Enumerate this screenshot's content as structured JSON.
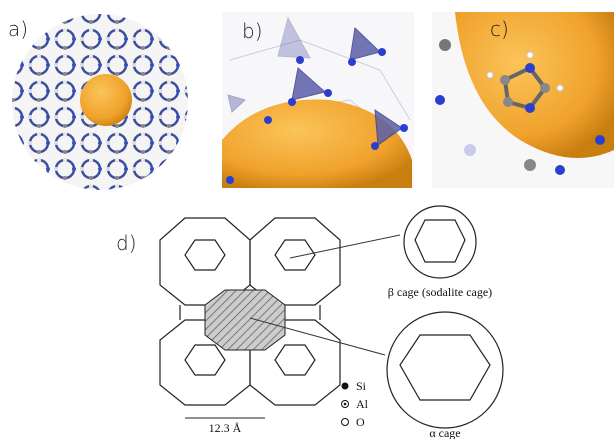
{
  "panels": [
    {
      "label": "a)"
    },
    {
      "label": "b)"
    },
    {
      "label": "c)"
    },
    {
      "label": "d)"
    }
  ],
  "diagram": {
    "beta_cage": "β cage (sodalite cage)",
    "alpha_cage": "α cage",
    "dimension": "12.3 Å",
    "legend": [
      "Si",
      "Al",
      "O"
    ]
  }
}
